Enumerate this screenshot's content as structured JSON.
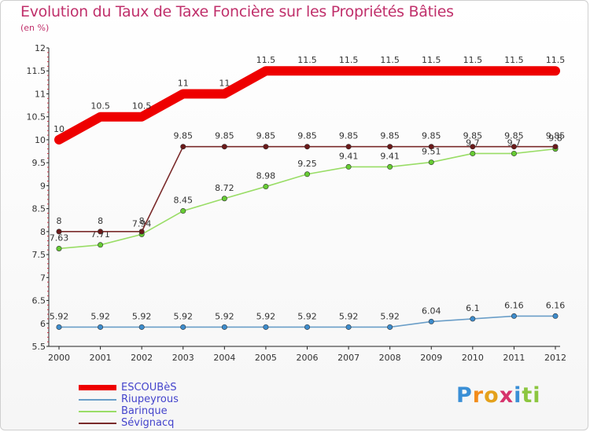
{
  "chart_data": {
    "type": "line",
    "title": "Evolution du Taux de Taxe Foncière sur les Propriétés Bâties",
    "subtitle": "(en %)",
    "xlabel": "",
    "ylabel": "",
    "categories": [
      "2000",
      "2001",
      "2002",
      "2003",
      "2004",
      "2005",
      "2006",
      "2007",
      "2008",
      "2009",
      "2010",
      "2011",
      "2012"
    ],
    "ylim": [
      5.5,
      12
    ],
    "yticks": [
      5.5,
      6,
      6.5,
      7,
      7.5,
      8,
      8.5,
      9,
      9.5,
      10,
      10.5,
      11,
      11.5,
      12
    ],
    "ytick_labels": [
      "5.5",
      "6",
      "6.5",
      "7",
      "7.5",
      "8",
      "8.5",
      "9",
      "9.5",
      "10",
      "10.5",
      "11",
      "11.5",
      "12"
    ],
    "grid": false,
    "legend_position": "bottom-left",
    "series": [
      {
        "name": "ESCOUBèS",
        "color": "#ee0000",
        "values": [
          10,
          10.5,
          10.5,
          11,
          11,
          11.5,
          11.5,
          11.5,
          11.5,
          11.5,
          11.5,
          11.5,
          11.5
        ],
        "labels": [
          "10",
          "10.5",
          "10.5",
          "11",
          "11",
          "11.5",
          "11.5",
          "11.5",
          "11.5",
          "11.5",
          "11.5",
          "11.5",
          "11.5"
        ]
      },
      {
        "name": "Riupeyrous",
        "color": "#6a9ec8",
        "marker": "#3d8ccc",
        "values": [
          5.92,
          5.92,
          5.92,
          5.92,
          5.92,
          5.92,
          5.92,
          5.92,
          5.92,
          6.04,
          6.1,
          6.16,
          6.16
        ],
        "labels": [
          "5.92",
          "5.92",
          "5.92",
          "5.92",
          "5.92",
          "5.92",
          "5.92",
          "5.92",
          "5.92",
          "6.04",
          "6.1",
          "6.16",
          "6.16"
        ]
      },
      {
        "name": "Barinque",
        "color": "#99dd66",
        "marker": "#66cc33",
        "values": [
          7.63,
          7.71,
          7.94,
          8.45,
          8.72,
          8.98,
          9.25,
          9.41,
          9.41,
          9.51,
          9.7,
          9.7,
          9.8
        ],
        "labels": [
          "7.63",
          "7.71",
          "7.94",
          "8.45",
          "8.72",
          "8.98",
          "9.25",
          "9.41",
          "9.41",
          "9.51",
          "9.7",
          "9.7",
          "9.8"
        ]
      },
      {
        "name": "Sévignacq",
        "color": "#7a2a2a",
        "marker": "#6b1a1a",
        "values": [
          8,
          8,
          8,
          9.85,
          9.85,
          9.85,
          9.85,
          9.85,
          9.85,
          9.85,
          9.85,
          9.85,
          9.85
        ],
        "labels": [
          "8",
          "8",
          "8",
          "9.85",
          "9.85",
          "9.85",
          "9.85",
          "9.85",
          "9.85",
          "9.85",
          "9.85",
          "9.85",
          "9.85"
        ]
      }
    ]
  },
  "logo": {
    "letters": [
      "P",
      "r",
      "o",
      "x",
      "i",
      "ti"
    ]
  }
}
